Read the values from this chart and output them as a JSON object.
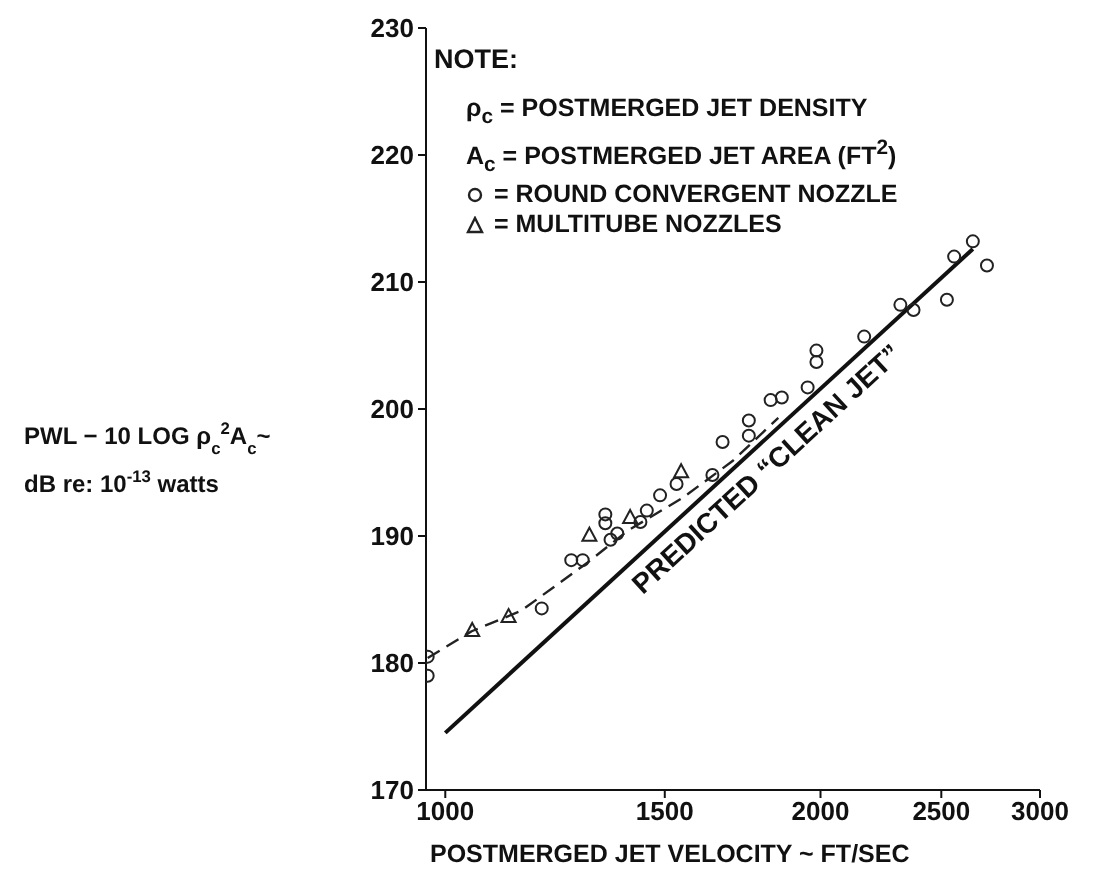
{
  "chart_data": {
    "type": "scatter",
    "xlabel": "POSTMERGED JET VELOCITY ~ FT/SEC",
    "ylabel": "PWL − 10 LOG ρ$_{c}$$^{2}$A$_{c}$~\ndB  re: 10$^{-13}$ watts",
    "annotations": [
      "NOTE:",
      "ρ$_{c}$  =  POSTMERGED JET DENSITY",
      "A$_{c}$  =  POSTMERGED JET AREA (FT$^{2}$)"
    ],
    "log": "x",
    "xlim": [
      965,
      3000
    ],
    "xticks": [
      1000,
      1500,
      2000,
      2500,
      3000
    ],
    "ylim": [
      170,
      230
    ],
    "yticks": [
      170,
      180,
      190,
      200,
      210,
      220,
      230
    ],
    "grid": false,
    "legend": "top left",
    "series": [
      {
        "name": "=  ROUND CONVERGENT NOZZLE",
        "marker": "circle",
        "color": "#222222",
        "x": [
          968,
          968,
          1195,
          1262,
          1289,
          1344,
          1344,
          1357,
          1374,
          1434,
          1451,
          1487,
          1533,
          1638,
          1669,
          1752,
          1752,
          1824,
          1862,
          1953,
          1985,
          1985,
          2168,
          2318,
          2375,
          2526,
          2560,
          2650,
          2720
        ],
        "values": [
          180.5,
          179,
          184.3,
          188.1,
          188.1,
          191.7,
          191,
          189.7,
          190.2,
          191.1,
          192,
          193.2,
          194.1,
          194.8,
          197.4,
          199.1,
          197.9,
          200.7,
          200.9,
          201.7,
          204.6,
          203.7,
          205.7,
          208.2,
          207.8,
          208.6,
          212,
          213.2,
          211.3
        ]
      },
      {
        "name": "=  MULTITUBE NOZZLES",
        "marker": "triangle",
        "color": "#222222",
        "x": [
          1051,
          1124,
          1305,
          1407,
          1546
        ],
        "values": [
          182.6,
          183.7,
          190.1,
          191.5,
          195.1
        ]
      },
      {
        "type": "line",
        "line_style": "dashed",
        "marker": "none",
        "color": "#222222",
        "x": [
          968,
          1050,
          1150,
          1300,
          1400,
          1550,
          1700,
          1850
        ],
        "values": [
          180.4,
          182.5,
          184.1,
          187.9,
          190.4,
          193,
          195.9,
          199.3
        ]
      },
      {
        "name": "PREDICTED “CLEAN JET”",
        "type": "line",
        "line_style": "solid",
        "marker": "none",
        "color": "#111111",
        "x": [
          1000,
          2650
        ],
        "values": [
          174.5,
          212.6
        ]
      }
    ]
  }
}
